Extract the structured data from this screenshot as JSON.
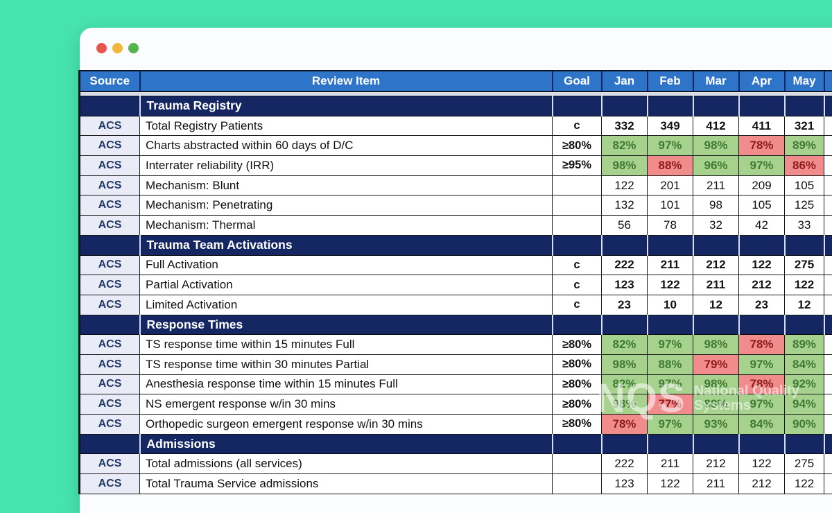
{
  "colors": {
    "teal_bg": "#47E3AE",
    "header_blue": "#2E74C8",
    "navy": "#152763",
    "source_bg": "#E9EBF6",
    "source_text": "#1F3864",
    "green_bg": "#A7D28E",
    "green_text": "#3E7A33",
    "red_bg": "#F18C8C",
    "red_text": "#8E1B1B",
    "dot_red": "#E9554D",
    "dot_yellow": "#F2B63C",
    "dot_green": "#56B44D"
  },
  "watermark": {
    "abbr": "NQS",
    "line1": "National Quality",
    "line2": "Systems"
  },
  "table": {
    "columns": [
      "Source",
      "Review Item",
      "Goal",
      "Jan",
      "Feb",
      "Mar",
      "Apr",
      "May"
    ],
    "sections": [
      {
        "title": "Trauma Registry",
        "rows": [
          {
            "source": "ACS",
            "item": "Total Registry Patients",
            "goal": "c",
            "values": [
              "332",
              "349",
              "412",
              "411",
              "321"
            ],
            "marks": [
              "n",
              "n",
              "n",
              "n",
              "n"
            ],
            "bold": true
          },
          {
            "source": "ACS",
            "item": "Charts abstracted within 60 days of D/C",
            "goal": "≥80%",
            "values": [
              "82%",
              "97%",
              "98%",
              "78%",
              "89%"
            ],
            "marks": [
              "g",
              "g",
              "g",
              "r",
              "g"
            ],
            "bold": true
          },
          {
            "source": "ACS",
            "item": "Interrater reliability (IRR)",
            "goal": "≥95%",
            "values": [
              "98%",
              "88%",
              "96%",
              "97%",
              "86%"
            ],
            "marks": [
              "g",
              "r",
              "g",
              "g",
              "r"
            ],
            "bold": true
          },
          {
            "source": "ACS",
            "item": "Mechanism: Blunt",
            "goal": "",
            "values": [
              "122",
              "201",
              "211",
              "209",
              "105"
            ],
            "marks": [
              "n",
              "n",
              "n",
              "n",
              "n"
            ],
            "bold": false
          },
          {
            "source": "ACS",
            "item": "Mechanism: Penetrating",
            "goal": "",
            "values": [
              "132",
              "101",
              "98",
              "105",
              "125"
            ],
            "marks": [
              "n",
              "n",
              "n",
              "n",
              "n"
            ],
            "bold": false
          },
          {
            "source": "ACS",
            "item": "Mechanism: Thermal",
            "goal": "",
            "values": [
              "56",
              "78",
              "32",
              "42",
              "33"
            ],
            "marks": [
              "n",
              "n",
              "n",
              "n",
              "n"
            ],
            "bold": false
          }
        ]
      },
      {
        "title": "Trauma Team Activations",
        "rows": [
          {
            "source": "ACS",
            "item": "Full Activation",
            "goal": "c",
            "values": [
              "222",
              "211",
              "212",
              "122",
              "275"
            ],
            "marks": [
              "n",
              "n",
              "n",
              "n",
              "n"
            ],
            "bold": true
          },
          {
            "source": "ACS",
            "item": "Partial Activation",
            "goal": "c",
            "values": [
              "123",
              "122",
              "211",
              "212",
              "122"
            ],
            "marks": [
              "n",
              "n",
              "n",
              "n",
              "n"
            ],
            "bold": true
          },
          {
            "source": "ACS",
            "item": "Limited Activation",
            "goal": "c",
            "values": [
              "23",
              "10",
              "12",
              "23",
              "12"
            ],
            "marks": [
              "n",
              "n",
              "n",
              "n",
              "n"
            ],
            "bold": true
          }
        ]
      },
      {
        "title": "Response Times",
        "rows": [
          {
            "source": "ACS",
            "item": "TS response time within 15 minutes Full",
            "goal": "≥80%",
            "values": [
              "82%",
              "97%",
              "98%",
              "78%",
              "89%"
            ],
            "marks": [
              "g",
              "g",
              "g",
              "r",
              "g"
            ],
            "bold": true
          },
          {
            "source": "ACS",
            "item": "TS response time within 30 minutes Partial",
            "goal": "≥80%",
            "values": [
              "98%",
              "88%",
              "79%",
              "97%",
              "84%"
            ],
            "marks": [
              "g",
              "g",
              "r",
              "g",
              "g"
            ],
            "bold": true
          },
          {
            "source": "ACS",
            "item": "Anesthesia response time within 15 minutes Full",
            "goal": "≥80%",
            "values": [
              "82%",
              "97%",
              "98%",
              "78%",
              "92%"
            ],
            "marks": [
              "g",
              "g",
              "g",
              "r",
              "g"
            ],
            "bold": true
          },
          {
            "source": "ACS",
            "item": "NS emergent response w/in 30 mins",
            "goal": "≥80%",
            "values": [
              "98%",
              "77%",
              "88%",
              "97%",
              "94%"
            ],
            "marks": [
              "g",
              "r",
              "g",
              "g",
              "g"
            ],
            "bold": true
          },
          {
            "source": "ACS",
            "item": "Orthopedic surgeon emergent response w/in 30 mins",
            "goal": "≥80%",
            "values": [
              "78%",
              "97%",
              "93%",
              "84%",
              "90%"
            ],
            "marks": [
              "r",
              "g",
              "g",
              "g",
              "g"
            ],
            "bold": true
          }
        ]
      },
      {
        "title": "Admissions",
        "rows": [
          {
            "source": "ACS",
            "item": "Total admissions (all services)",
            "goal": "",
            "values": [
              "222",
              "211",
              "212",
              "122",
              "275"
            ],
            "marks": [
              "n",
              "n",
              "n",
              "n",
              "n"
            ],
            "bold": false
          },
          {
            "source": "ACS",
            "item": "Total Trauma Service admissions",
            "goal": "",
            "values": [
              "123",
              "122",
              "211",
              "212",
              "122"
            ],
            "marks": [
              "n",
              "n",
              "n",
              "n",
              "n"
            ],
            "bold": false
          }
        ]
      }
    ]
  }
}
